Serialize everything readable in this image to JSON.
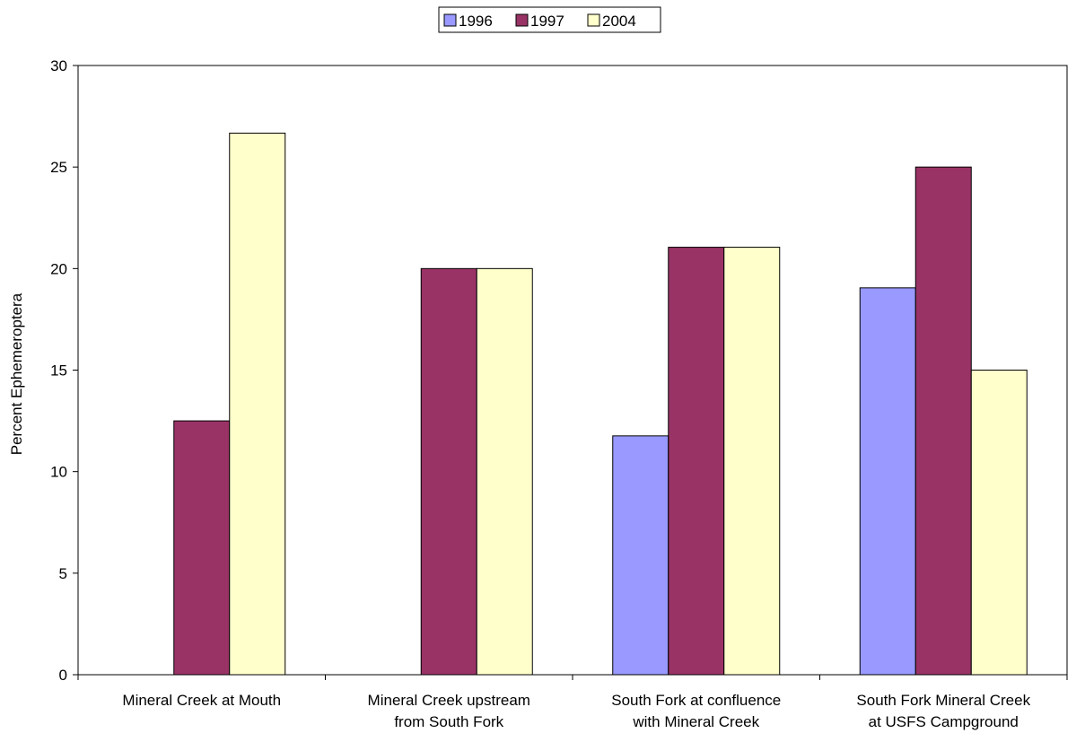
{
  "chart_data": {
    "type": "bar",
    "title": "",
    "xlabel": "",
    "ylabel": "Percent Ephemeroptera",
    "ylim": [
      0,
      30
    ],
    "yticks": [
      0,
      5,
      10,
      15,
      20,
      25,
      30
    ],
    "grid": false,
    "legend_position": "top-center",
    "categories": [
      [
        "Mineral Creek at Mouth"
      ],
      [
        "Mineral Creek upstream",
        "from South Fork"
      ],
      [
        "South Fork at confluence",
        "with Mineral Creek"
      ],
      [
        "South Fork Mineral Creek",
        "at USFS Campground"
      ]
    ],
    "series": [
      {
        "name": "1996",
        "color": "#9999ff",
        "values": [
          null,
          null,
          11.76,
          19.05
        ]
      },
      {
        "name": "1997",
        "color": "#993366",
        "values": [
          12.5,
          20.0,
          21.05,
          25.0
        ]
      },
      {
        "name": "2004",
        "color": "#ffffcc",
        "values": [
          26.67,
          20.0,
          21.05,
          15.0
        ]
      }
    ]
  }
}
